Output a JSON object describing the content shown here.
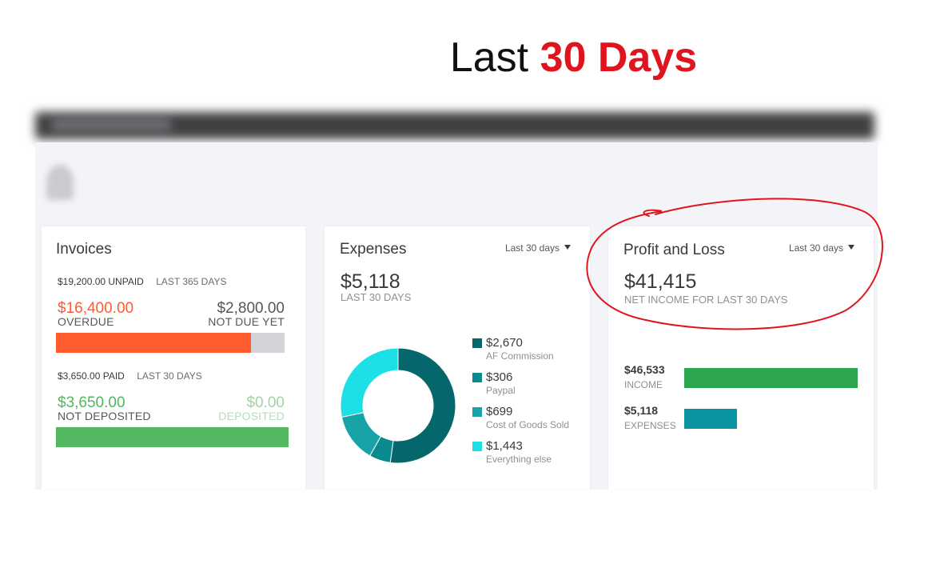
{
  "headline": {
    "prefix": "Last",
    "highlight": "30 Days"
  },
  "colors": {
    "overdue": "#ff5b2e",
    "not_due": "#d3d4d7",
    "paid": "#53b660",
    "deposited_text": "#9fd4a6",
    "expense_dark": "#05676b",
    "expense_mid": "#0a8a8e",
    "expense_light": "#17a3a8",
    "expense_bright": "#1ddfe6",
    "income_bar": "#2ca750",
    "expense_bar": "#0a93a0",
    "annotation": "#e0141e"
  },
  "invoices": {
    "title": "Invoices",
    "unpaid_amount": "$19,200.00 UNPAID",
    "unpaid_period": "LAST 365 DAYS",
    "overdue_amount": "$16,400.00",
    "overdue_label": "OVERDUE",
    "not_due_amount": "$2,800.00",
    "not_due_label": "NOT DUE YET",
    "overdue_fraction": 0.854,
    "paid_amount": "$3,650.00 PAID",
    "paid_period": "LAST 30 DAYS",
    "not_deposited_amount": "$3,650.00",
    "not_deposited_label": "NOT DEPOSITED",
    "deposited_amount": "$0.00",
    "deposited_label": "DEPOSITED",
    "not_deposited_fraction": 1.0
  },
  "expenses": {
    "title": "Expenses",
    "range": "Last 30 days",
    "total": "$5,118",
    "period": "LAST 30 DAYS",
    "categories": [
      {
        "amount": "$2,670",
        "label": "AF Commission",
        "value": 2670,
        "color": "#05676b"
      },
      {
        "amount": "$306",
        "label": "Paypal",
        "value": 306,
        "color": "#0a8a8e"
      },
      {
        "amount": "$699",
        "label": "Cost of Goods Sold",
        "value": 699,
        "color": "#17a3a8"
      },
      {
        "amount": "$1,443",
        "label": "Everything else",
        "value": 1443,
        "color": "#1ddfe6"
      }
    ]
  },
  "profit_loss": {
    "title": "Profit and Loss",
    "range": "Last 30 days",
    "net_income": "$41,415",
    "net_label": "NET INCOME FOR LAST 30 DAYS",
    "income_amount": "$46,533",
    "income_label": "INCOME",
    "income_value": 46533,
    "expenses_amount": "$5,118",
    "expenses_label": "EXPENSES",
    "expenses_value": 5118
  }
}
